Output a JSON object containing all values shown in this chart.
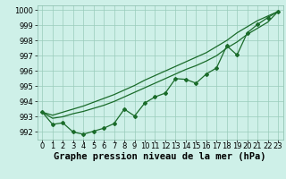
{
  "xlabel": "Graphe pression niveau de la mer (hPa)",
  "ylim": [
    991.5,
    1000.3
  ],
  "xlim": [
    -0.5,
    23.5
  ],
  "yticks": [
    992,
    993,
    994,
    995,
    996,
    997,
    998,
    999,
    1000
  ],
  "xticks": [
    0,
    1,
    2,
    3,
    4,
    5,
    6,
    7,
    8,
    9,
    10,
    11,
    12,
    13,
    14,
    15,
    16,
    17,
    18,
    19,
    20,
    21,
    22,
    23
  ],
  "background_color": "#cef0e8",
  "grid_color": "#99ccbb",
  "line_color": "#1a6b2a",
  "line_main": [
    993.3,
    992.5,
    992.6,
    992.0,
    991.85,
    992.05,
    992.25,
    992.55,
    993.5,
    993.05,
    993.9,
    994.3,
    994.55,
    995.5,
    995.45,
    995.2,
    995.8,
    996.2,
    997.65,
    997.05,
    998.5,
    999.05,
    999.5,
    999.9
  ],
  "line_upper": [
    993.3,
    993.1,
    993.3,
    993.5,
    993.7,
    993.95,
    994.2,
    994.45,
    994.75,
    995.05,
    995.4,
    995.7,
    996.0,
    996.3,
    996.6,
    996.9,
    997.2,
    997.6,
    998.0,
    998.5,
    998.9,
    999.3,
    999.6,
    999.9
  ],
  "line_mid": [
    993.3,
    992.9,
    993.0,
    993.2,
    993.35,
    993.55,
    993.75,
    994.0,
    994.3,
    994.6,
    994.9,
    995.2,
    995.5,
    995.8,
    996.1,
    996.35,
    996.65,
    997.0,
    997.5,
    997.9,
    998.4,
    998.8,
    999.2,
    999.9
  ],
  "tick_fontsize": 6,
  "xlabel_fontsize": 7.5,
  "marker": "D",
  "markersize": 2.0,
  "linewidth": 0.9
}
